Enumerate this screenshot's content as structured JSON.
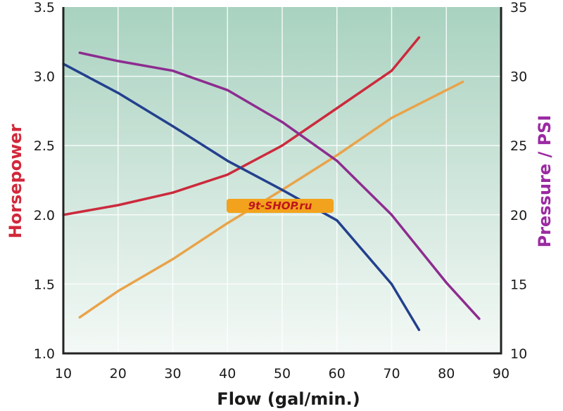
{
  "chart_data": {
    "type": "line",
    "xlabel": "Flow (gal/min.)",
    "ylabel_left": "Horsepower",
    "ylabel_right": "Pressure / PSI",
    "xlim": [
      10,
      90
    ],
    "ylim_left": [
      1.0,
      3.5
    ],
    "ylim_right": [
      10,
      35
    ],
    "x_ticks": [
      "10",
      "20",
      "30",
      "40",
      "50",
      "60",
      "70",
      "80",
      "90"
    ],
    "y_left_ticks": [
      "1.0",
      "1.5",
      "2.0",
      "2.5",
      "3.0",
      "3.5"
    ],
    "y_right_ticks": [
      "10",
      "15",
      "20",
      "25",
      "30",
      "35"
    ],
    "grid": true,
    "colors": {
      "left_axis_label": "#d2283a",
      "right_axis_label": "#9b2aa2",
      "bg_top": "#a9d2c0",
      "bg_bottom": "#f4f9f6",
      "grid": "#ffffff"
    },
    "series": [
      {
        "color": "#cc2a3c",
        "axis": "left",
        "points": [
          [
            10,
            2.0
          ],
          [
            20,
            2.07
          ],
          [
            30,
            2.16
          ],
          [
            40,
            2.29
          ],
          [
            50,
            2.5
          ],
          [
            60,
            2.77
          ],
          [
            70,
            3.04
          ],
          [
            75,
            3.28
          ]
        ]
      },
      {
        "color": "#e9a34a",
        "axis": "left",
        "points": [
          [
            13,
            1.26
          ],
          [
            20,
            1.45
          ],
          [
            30,
            1.68
          ],
          [
            40,
            1.94
          ],
          [
            50,
            2.18
          ],
          [
            60,
            2.43
          ],
          [
            70,
            2.7
          ],
          [
            83,
            2.96
          ]
        ]
      },
      {
        "color": "#23408e",
        "axis": "left",
        "points": [
          [
            10,
            3.09
          ],
          [
            20,
            2.88
          ],
          [
            30,
            2.64
          ],
          [
            40,
            2.39
          ],
          [
            50,
            2.18
          ],
          [
            60,
            1.96
          ],
          [
            70,
            1.5
          ],
          [
            75,
            1.17
          ]
        ]
      },
      {
        "color": "#8d2c8f",
        "axis": "right",
        "points": [
          [
            13,
            31.7
          ],
          [
            20,
            31.1
          ],
          [
            30,
            30.4
          ],
          [
            40,
            29.0
          ],
          [
            50,
            26.7
          ],
          [
            60,
            23.9
          ],
          [
            70,
            20.0
          ],
          [
            80,
            15.1
          ],
          [
            86,
            12.5
          ]
        ]
      }
    ],
    "watermark": "9t-SHOP.ru"
  }
}
